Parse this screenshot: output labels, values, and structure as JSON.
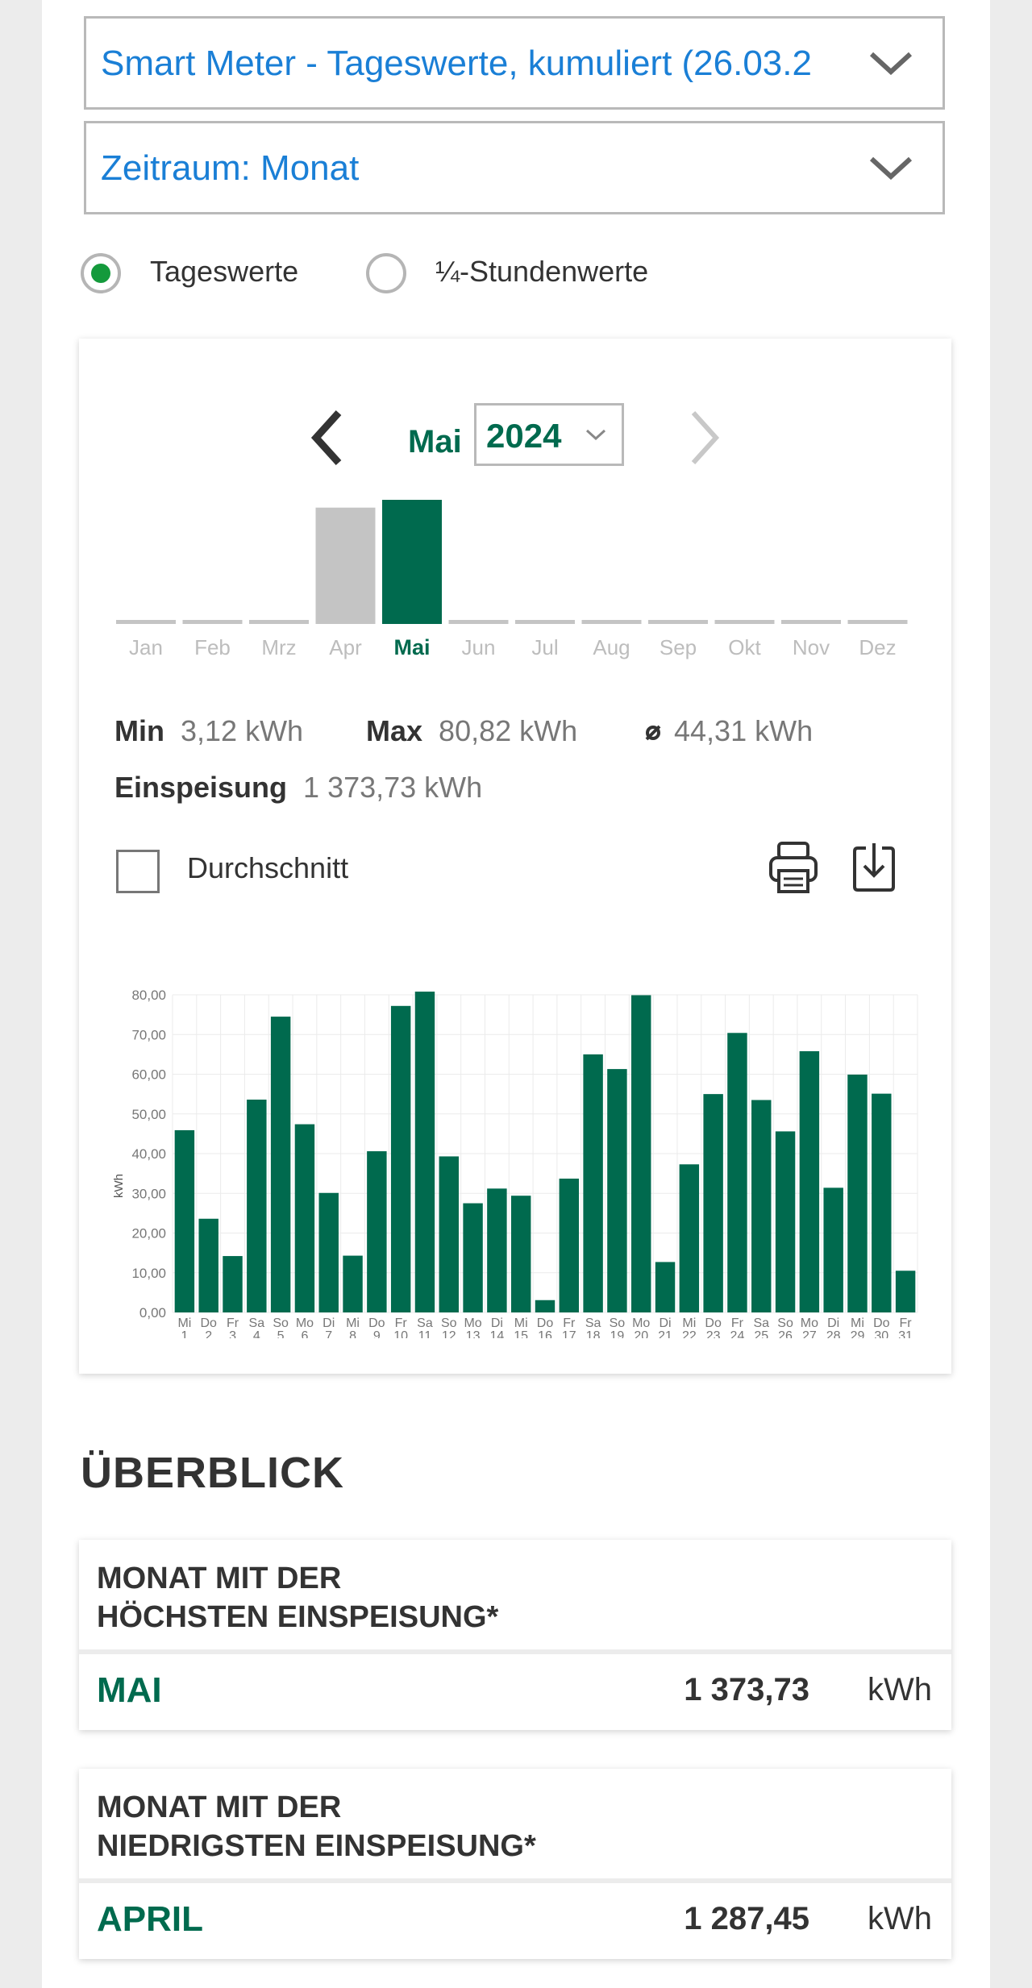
{
  "selects": {
    "meter_label": "Smart Meter - Tageswerte, kumuliert (26.03.2",
    "period_label": "Zeitraum: Monat"
  },
  "radio": {
    "daily_label": "Tageswerte",
    "quarter_label": "¼-Stundenwerte",
    "selected": "daily"
  },
  "navigator": {
    "month": "Mai",
    "year": "2024"
  },
  "month_bar": {
    "months": [
      "Jan",
      "Feb",
      "Mrz",
      "Apr",
      "Mai",
      "Jun",
      "Jul",
      "Aug",
      "Sep",
      "Okt",
      "Nov",
      "Dez"
    ],
    "values": [
      0,
      0,
      40,
      1287.45,
      1373.73,
      0,
      0,
      0,
      0,
      0,
      0,
      0
    ],
    "selected_index": 4
  },
  "stats": {
    "min_label": "Min",
    "min_value": "3,12 kWh",
    "max_label": "Max",
    "max_value": "80,82 kWh",
    "avg_value": "44,31 kWh",
    "feed_label": "Einspeisung",
    "feed_value": "1 373,73 kWh"
  },
  "average_checkbox": {
    "label": "Durchschnitt",
    "checked": false
  },
  "icons": {
    "print": "printer-icon",
    "download": "download-icon"
  },
  "colors": {
    "primary_green": "#006a4e",
    "link_blue": "#1a7fd6",
    "radio_green": "#149a3c",
    "inactive_bar": "#c4c4c4"
  },
  "chart_data": {
    "type": "bar",
    "ylabel": "kWh",
    "ylim": [
      0,
      80
    ],
    "yticks": [
      "0,00",
      "10,00",
      "20,00",
      "30,00",
      "40,00",
      "50,00",
      "60,00",
      "70,00",
      "80,00"
    ],
    "categories": [
      "Mi 1",
      "Do 2",
      "Fr 3",
      "Sa 4",
      "So 5",
      "Mo 6",
      "Di 7",
      "Mi 8",
      "Do 9",
      "Fr 10",
      "Sa 11",
      "So 12",
      "Mo 13",
      "Di 14",
      "Mi 15",
      "Do 16",
      "Fr 17",
      "Sa 18",
      "So 19",
      "Mo 20",
      "Di 21",
      "Mi 22",
      "Do 23",
      "Fr 24",
      "Sa 25",
      "So 26",
      "Mo 27",
      "Di 28",
      "Mi 29",
      "Do 30",
      "Fr 31"
    ],
    "weekdays": [
      "Mi",
      "Do",
      "Fr",
      "Sa",
      "So",
      "Mo",
      "Di",
      "Mi",
      "Do",
      "Fr",
      "Sa",
      "So",
      "Mo",
      "Di",
      "Mi",
      "Do",
      "Fr",
      "Sa",
      "So",
      "Mo",
      "Di",
      "Mi",
      "Do",
      "Fr",
      "Sa",
      "So",
      "Mo",
      "Di",
      "Mi",
      "Do",
      "Fr"
    ],
    "days": [
      "1",
      "2",
      "3",
      "4",
      "5",
      "6",
      "7",
      "8",
      "9",
      "10",
      "11",
      "12",
      "13",
      "14",
      "15",
      "16",
      "17",
      "18",
      "19",
      "20",
      "21",
      "22",
      "23",
      "24",
      "25",
      "26",
      "27",
      "28",
      "29",
      "30",
      "31"
    ],
    "values": [
      45.9,
      23.6,
      14.2,
      53.6,
      74.5,
      47.4,
      30.1,
      14.3,
      40.6,
      77.2,
      80.8,
      39.3,
      27.5,
      31.2,
      29.4,
      3.1,
      33.7,
      65.0,
      61.3,
      79.9,
      12.7,
      37.3,
      55.0,
      70.4,
      53.5,
      45.6,
      65.8,
      31.4,
      59.9,
      55.1,
      10.5
    ],
    "grid": true
  },
  "overview": {
    "title": "ÜBERBLICK",
    "highest": {
      "title_line1": "MONAT MIT DER",
      "title_line2": "HÖCHSTEN EINSPEISUNG*",
      "month": "MAI",
      "value": "1 373,73",
      "unit": "kWh"
    },
    "lowest": {
      "title_line1": "MONAT MIT DER",
      "title_line2": "NIEDRIGSTEN EINSPEISUNG*",
      "month": "APRIL",
      "value": "1 287,45",
      "unit": "kWh"
    }
  }
}
